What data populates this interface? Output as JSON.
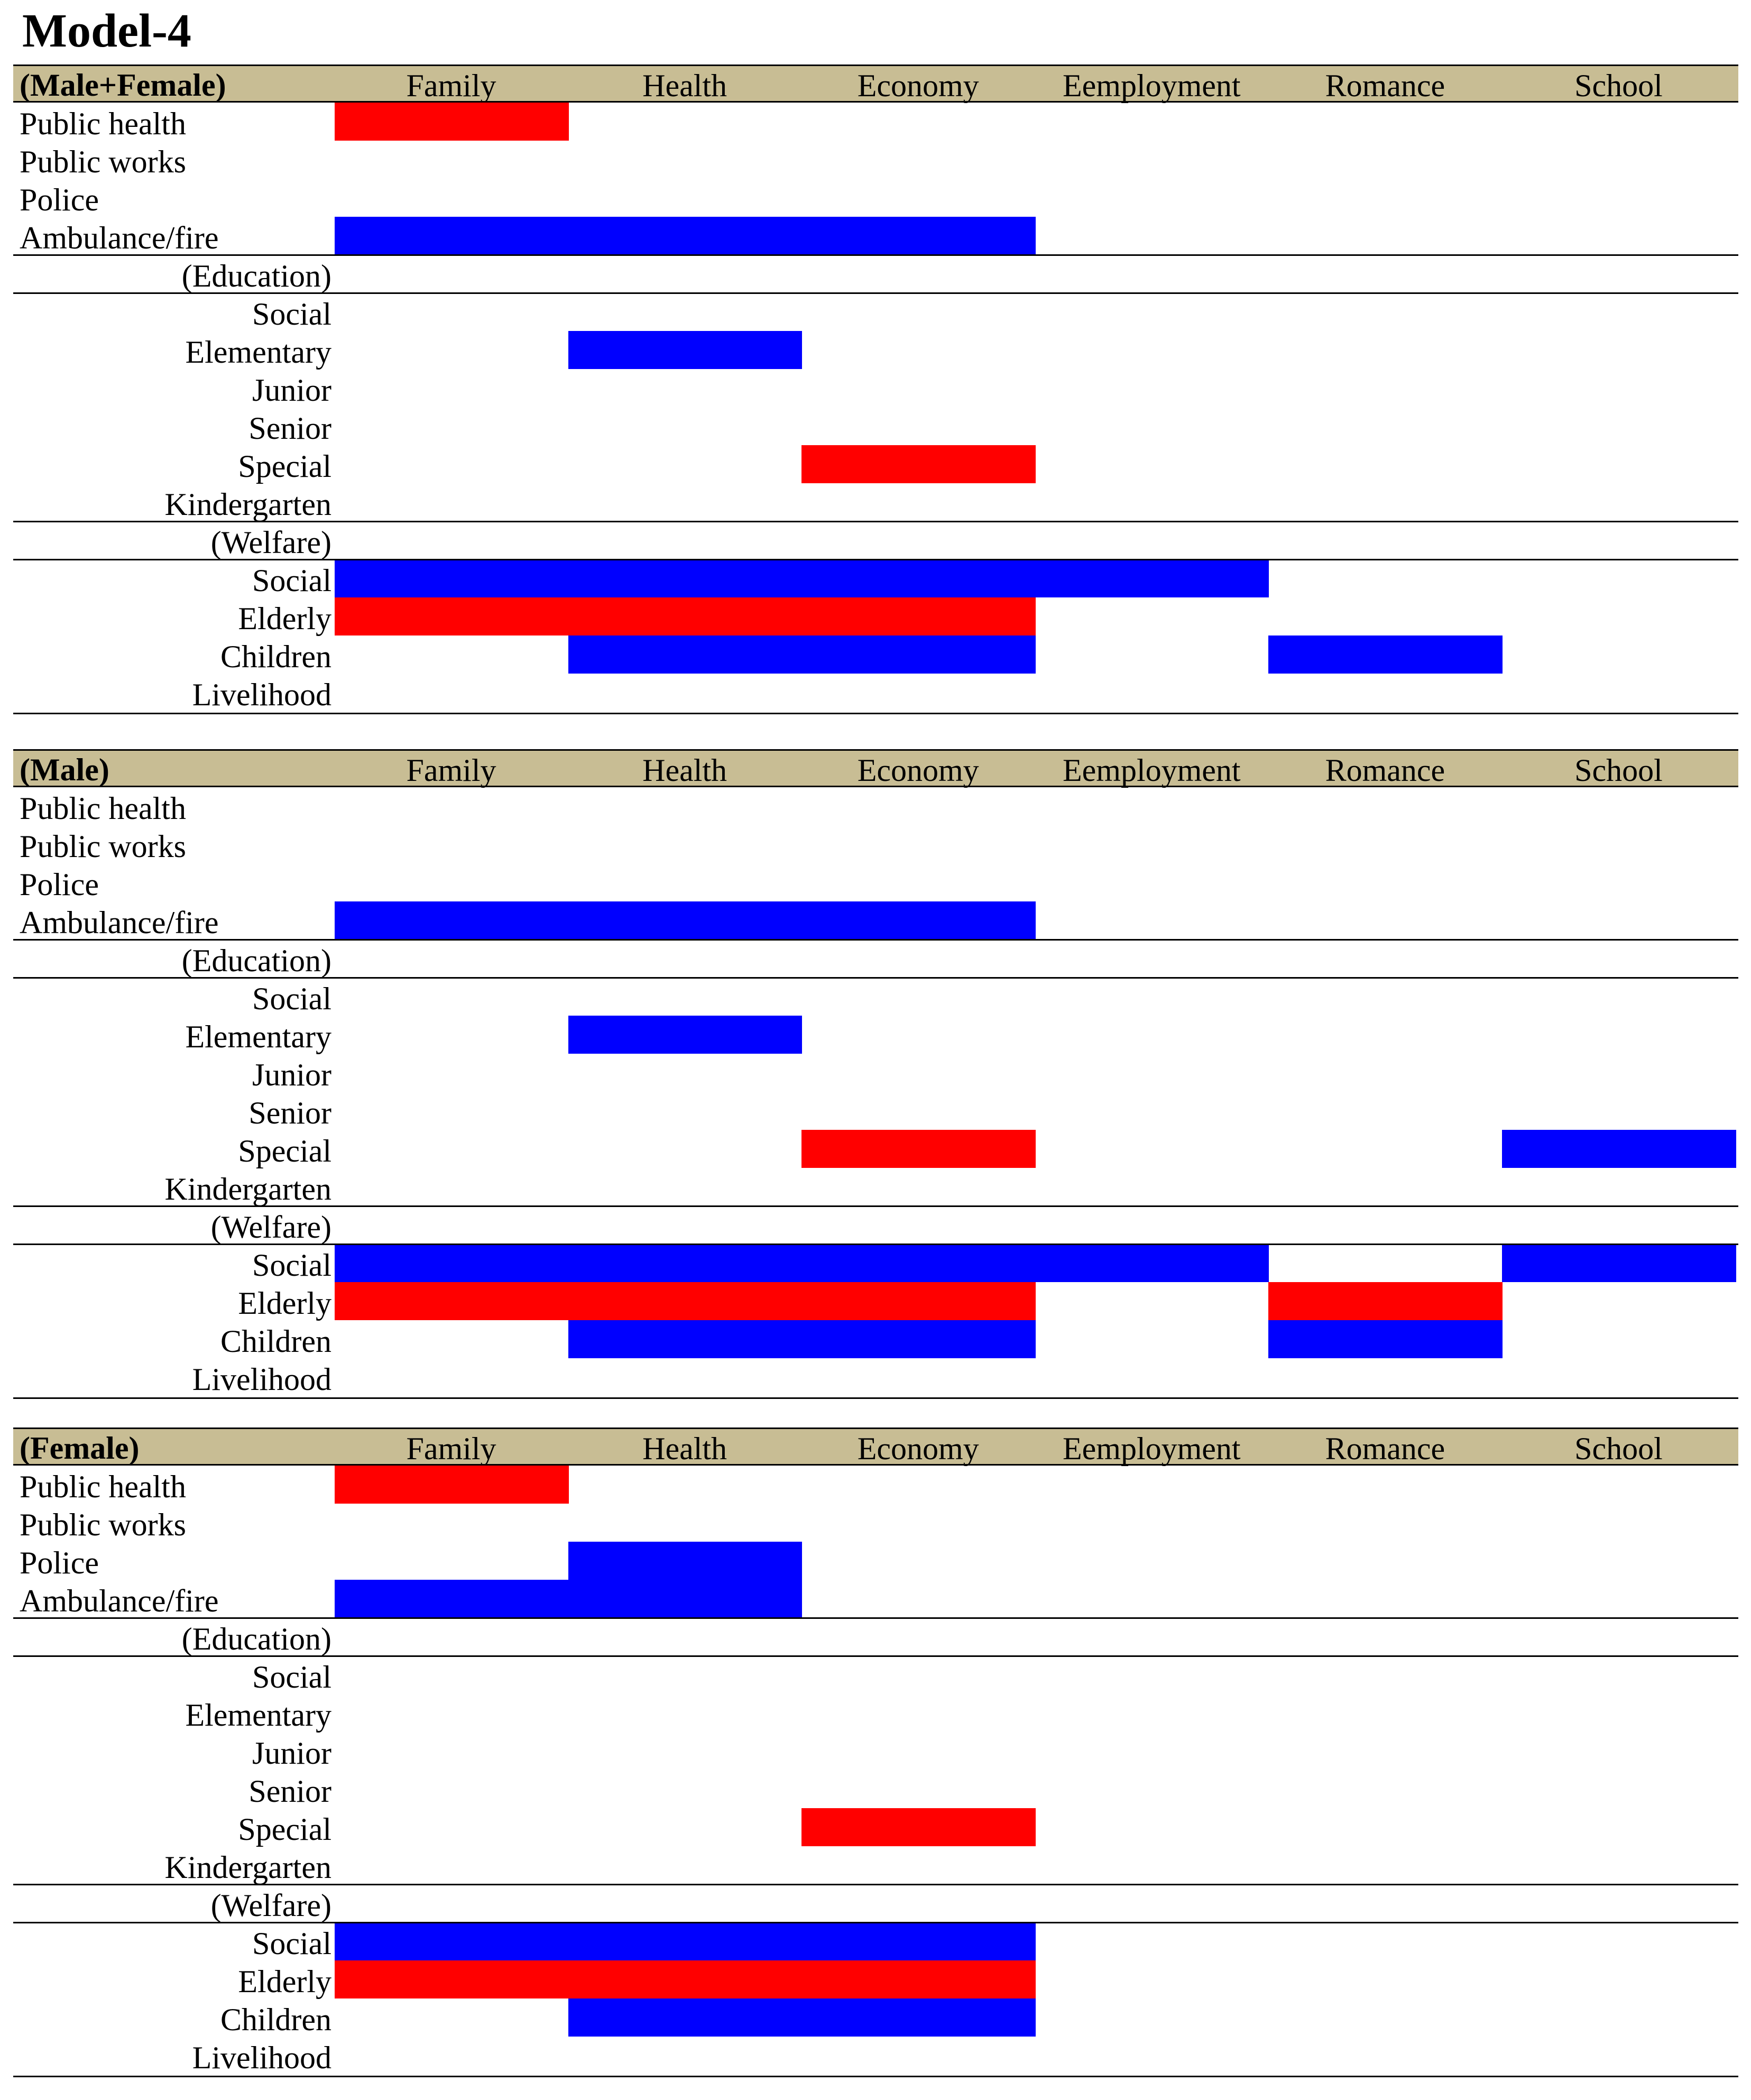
{
  "title": "Model-4",
  "chart_data": {
    "type": "heatmap",
    "colors": {
      "positive": "#0000ff",
      "negative": "#ff0000",
      "header": "#c8bd94"
    },
    "columns": [
      "Family",
      "Health",
      "Economy",
      "Eemployment",
      "Romance",
      "School"
    ],
    "rows": [
      {
        "label": "Public health",
        "style": "left"
      },
      {
        "label": "Public works",
        "style": "left"
      },
      {
        "label": "Police",
        "style": "left"
      },
      {
        "label": "Ambulance/fire",
        "style": "left"
      },
      {
        "label": "(Education)",
        "style": "section"
      },
      {
        "label": "Social",
        "style": "right"
      },
      {
        "label": "Elementary",
        "style": "right"
      },
      {
        "label": "Junior",
        "style": "right"
      },
      {
        "label": "Senior",
        "style": "right"
      },
      {
        "label": "Special",
        "style": "right"
      },
      {
        "label": "Kindergarten",
        "style": "right"
      },
      {
        "label": "(Welfare)",
        "style": "section"
      },
      {
        "label": "Social",
        "style": "right"
      },
      {
        "label": "Elderly",
        "style": "right"
      },
      {
        "label": "Children",
        "style": "right"
      },
      {
        "label": "Livelihood",
        "style": "right"
      }
    ],
    "panels": [
      {
        "group": "(Male+Female)",
        "cells": [
          {
            "row": 0,
            "col": 0,
            "sign": "negative"
          },
          {
            "row": 3,
            "col": 0,
            "sign": "positive"
          },
          {
            "row": 3,
            "col": 1,
            "sign": "positive"
          },
          {
            "row": 3,
            "col": 2,
            "sign": "positive"
          },
          {
            "row": 6,
            "col": 1,
            "sign": "positive"
          },
          {
            "row": 9,
            "col": 2,
            "sign": "negative"
          },
          {
            "row": 12,
            "col": 0,
            "sign": "positive"
          },
          {
            "row": 12,
            "col": 1,
            "sign": "positive"
          },
          {
            "row": 12,
            "col": 2,
            "sign": "positive"
          },
          {
            "row": 12,
            "col": 3,
            "sign": "positive"
          },
          {
            "row": 13,
            "col": 0,
            "sign": "negative"
          },
          {
            "row": 13,
            "col": 1,
            "sign": "negative"
          },
          {
            "row": 13,
            "col": 2,
            "sign": "negative"
          },
          {
            "row": 14,
            "col": 1,
            "sign": "positive"
          },
          {
            "row": 14,
            "col": 2,
            "sign": "positive"
          },
          {
            "row": 14,
            "col": 4,
            "sign": "positive"
          }
        ]
      },
      {
        "group": "(Male)",
        "cells": [
          {
            "row": 3,
            "col": 0,
            "sign": "positive"
          },
          {
            "row": 3,
            "col": 1,
            "sign": "positive"
          },
          {
            "row": 3,
            "col": 2,
            "sign": "positive"
          },
          {
            "row": 6,
            "col": 1,
            "sign": "positive"
          },
          {
            "row": 9,
            "col": 2,
            "sign": "negative"
          },
          {
            "row": 9,
            "col": 5,
            "sign": "positive"
          },
          {
            "row": 12,
            "col": 0,
            "sign": "positive"
          },
          {
            "row": 12,
            "col": 1,
            "sign": "positive"
          },
          {
            "row": 12,
            "col": 2,
            "sign": "positive"
          },
          {
            "row": 12,
            "col": 3,
            "sign": "positive"
          },
          {
            "row": 12,
            "col": 5,
            "sign": "positive"
          },
          {
            "row": 13,
            "col": 0,
            "sign": "negative"
          },
          {
            "row": 13,
            "col": 1,
            "sign": "negative"
          },
          {
            "row": 13,
            "col": 2,
            "sign": "negative"
          },
          {
            "row": 13,
            "col": 4,
            "sign": "negative"
          },
          {
            "row": 14,
            "col": 1,
            "sign": "positive"
          },
          {
            "row": 14,
            "col": 2,
            "sign": "positive"
          },
          {
            "row": 14,
            "col": 4,
            "sign": "positive"
          }
        ]
      },
      {
        "group": "(Female)",
        "cells": [
          {
            "row": 0,
            "col": 0,
            "sign": "negative"
          },
          {
            "row": 2,
            "col": 1,
            "sign": "positive"
          },
          {
            "row": 3,
            "col": 0,
            "sign": "positive"
          },
          {
            "row": 3,
            "col": 1,
            "sign": "positive"
          },
          {
            "row": 9,
            "col": 2,
            "sign": "negative"
          },
          {
            "row": 12,
            "col": 0,
            "sign": "positive"
          },
          {
            "row": 12,
            "col": 1,
            "sign": "positive"
          },
          {
            "row": 12,
            "col": 2,
            "sign": "positive"
          },
          {
            "row": 13,
            "col": 0,
            "sign": "negative"
          },
          {
            "row": 13,
            "col": 1,
            "sign": "negative"
          },
          {
            "row": 13,
            "col": 2,
            "sign": "negative"
          },
          {
            "row": 14,
            "col": 1,
            "sign": "positive"
          },
          {
            "row": 14,
            "col": 2,
            "sign": "positive"
          }
        ]
      }
    ]
  }
}
